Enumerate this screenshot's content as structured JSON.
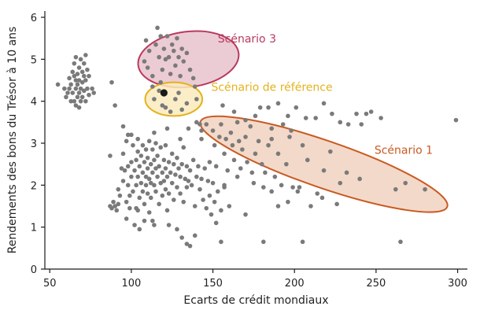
{
  "chart_data": {
    "type": "scatter",
    "title": "",
    "xlabel": "Ecarts de crédit mondiaux",
    "ylabel": "Rendements des bons du Trésor à 10 ans",
    "xlim": [
      47,
      306
    ],
    "ylim": [
      0,
      6.15
    ],
    "xticks": [
      50,
      100,
      150,
      200,
      250,
      300
    ],
    "yticks": [
      0,
      1,
      2,
      3,
      4,
      5,
      6
    ],
    "grid": false,
    "point_color": "#7a7a7a",
    "highlight_point": {
      "x": 120,
      "y": 4.2,
      "color": "#1a1a1a"
    },
    "annotations": [
      {
        "label": "Scénario 3",
        "center": [
          135,
          5.0
        ],
        "rx": 31,
        "ry": 0.66,
        "angle_deg": -7,
        "stroke": "#b83a5e",
        "fill": "#e9c3cd",
        "label_x": 153,
        "label_y": 5.4
      },
      {
        "label": "Scénario de référence",
        "center": [
          126,
          4.05
        ],
        "rx": 17.5,
        "ry": 0.4,
        "angle_deg": 0,
        "stroke": "#e3b21e",
        "fill": "#faebbd",
        "label_x": 149,
        "label_y": 4.25
      },
      {
        "label": "Scénario 1",
        "center": [
          218,
          2.5
        ],
        "rx": 80,
        "ry": 0.56,
        "angle_deg": 19,
        "stroke": "#c85a21",
        "fill": "#f1d2c0",
        "label_x": 249,
        "label_y": 2.75
      }
    ],
    "points": [
      [
        55,
        4.4
      ],
      [
        59,
        4.3
      ],
      [
        60,
        4.1
      ],
      [
        61,
        4.2
      ],
      [
        62,
        4.3
      ],
      [
        62,
        4.55
      ],
      [
        63,
        4.0
      ],
      [
        63,
        4.4
      ],
      [
        64,
        4.2
      ],
      [
        64,
        4.7
      ],
      [
        65,
        4.0
      ],
      [
        65,
        4.6
      ],
      [
        65,
        4.9
      ],
      [
        66,
        3.9
      ],
      [
        66,
        4.3
      ],
      [
        66,
        4.5
      ],
      [
        66,
        5.05
      ],
      [
        67,
        4.1
      ],
      [
        67,
        4.4
      ],
      [
        67,
        4.65
      ],
      [
        68,
        3.85
      ],
      [
        68,
        4.2
      ],
      [
        68,
        4.5
      ],
      [
        68,
        4.8
      ],
      [
        69,
        4.0
      ],
      [
        69,
        4.3
      ],
      [
        69,
        5.0
      ],
      [
        70,
        4.1
      ],
      [
        70,
        4.45
      ],
      [
        70,
        4.7
      ],
      [
        71,
        4.25
      ],
      [
        71,
        4.6
      ],
      [
        71,
        4.9
      ],
      [
        72,
        4.0
      ],
      [
        72,
        4.5
      ],
      [
        72,
        5.1
      ],
      [
        73,
        4.3
      ],
      [
        73,
        4.75
      ],
      [
        74,
        4.15
      ],
      [
        74,
        4.6
      ],
      [
        76,
        4.3
      ],
      [
        77,
        4.2
      ],
      [
        88,
        4.45
      ],
      [
        90,
        3.9
      ],
      [
        95,
        3.4
      ],
      [
        98,
        3.2
      ],
      [
        87,
        2.7
      ],
      [
        87,
        1.5
      ],
      [
        88,
        1.45
      ],
      [
        89,
        1.6
      ],
      [
        90,
        1.5
      ],
      [
        91,
        1.4
      ],
      [
        92,
        1.55
      ],
      [
        93,
        1.75
      ],
      [
        94,
        2.4
      ],
      [
        95,
        2.1
      ],
      [
        96,
        2.35
      ],
      [
        97,
        1.6
      ],
      [
        97,
        1.2
      ],
      [
        98,
        2.0
      ],
      [
        98,
        2.45
      ],
      [
        99,
        1.75
      ],
      [
        99,
        1.45
      ],
      [
        100,
        2.2
      ],
      [
        100,
        2.55
      ],
      [
        101,
        2.95
      ],
      [
        101,
        1.85
      ],
      [
        102,
        2.35
      ],
      [
        102,
        1.05
      ],
      [
        103,
        2.6
      ],
      [
        103,
        2.0
      ],
      [
        104,
        2.2
      ],
      [
        104,
        2.8
      ],
      [
        104,
        1.4
      ],
      [
        105,
        2.45
      ],
      [
        105,
        1.7
      ],
      [
        105,
        0.95
      ],
      [
        106,
        2.7
      ],
      [
        106,
        2.05
      ],
      [
        107,
        2.3
      ],
      [
        107,
        1.85
      ],
      [
        107,
        2.95
      ],
      [
        108,
        2.55
      ],
      [
        108,
        1.55
      ],
      [
        109,
        2.2
      ],
      [
        109,
        2.85
      ],
      [
        109,
        2.0
      ],
      [
        110,
        2.4
      ],
      [
        110,
        1.8
      ],
      [
        110,
        2.65
      ],
      [
        111,
        2.15
      ],
      [
        111,
        3.05
      ],
      [
        111,
        1.35
      ],
      [
        112,
        2.5
      ],
      [
        112,
        2.05
      ],
      [
        112,
        1.7
      ],
      [
        113,
        2.3
      ],
      [
        113,
        2.85
      ],
      [
        113,
        1.15
      ],
      [
        114,
        2.6
      ],
      [
        114,
        2.0
      ],
      [
        115,
        2.4
      ],
      [
        115,
        1.85
      ],
      [
        115,
        3.0
      ],
      [
        116,
        2.2
      ],
      [
        116,
        2.7
      ],
      [
        117,
        2.45
      ],
      [
        117,
        1.55
      ],
      [
        118,
        2.05
      ],
      [
        118,
        2.9
      ],
      [
        119,
        2.3
      ],
      [
        119,
        1.75
      ],
      [
        120,
        2.6
      ],
      [
        120,
        2.1
      ],
      [
        121,
        2.4
      ],
      [
        121,
        1.9
      ],
      [
        121,
        2.95
      ],
      [
        122,
        2.2
      ],
      [
        122,
        1.4
      ],
      [
        123,
        2.55
      ],
      [
        123,
        1.8
      ],
      [
        124,
        2.3
      ],
      [
        125,
        2.05
      ],
      [
        125,
        2.75
      ],
      [
        126,
        2.5
      ],
      [
        126,
        1.65
      ],
      [
        127,
        2.25
      ],
      [
        128,
        1.95
      ],
      [
        128,
        2.65
      ],
      [
        129,
        2.4
      ],
      [
        130,
        1.8
      ],
      [
        130,
        2.2
      ],
      [
        131,
        2.5
      ],
      [
        132,
        1.6
      ],
      [
        132,
        2.9
      ],
      [
        133,
        2.15
      ],
      [
        134,
        1.95
      ],
      [
        134,
        2.45
      ],
      [
        135,
        2.1
      ],
      [
        136,
        2.35
      ],
      [
        137,
        2.0
      ],
      [
        138,
        2.6
      ],
      [
        139,
        1.5
      ],
      [
        140,
        2.2
      ],
      [
        141,
        2.45
      ],
      [
        142,
        1.9
      ],
      [
        143,
        2.15
      ],
      [
        144,
        1.65
      ],
      [
        145,
        2.4
      ],
      [
        146,
        1.45
      ],
      [
        147,
        2.1
      ],
      [
        148,
        1.75
      ],
      [
        149,
        1.3
      ],
      [
        150,
        2.05
      ],
      [
        151,
        1.6
      ],
      [
        152,
        1.1
      ],
      [
        153,
        1.85
      ],
      [
        155,
        1.4
      ],
      [
        157,
        1.95
      ],
      [
        160,
        1.5
      ],
      [
        103,
        1.45
      ],
      [
        108,
        1.15
      ],
      [
        114,
        1.05
      ],
      [
        123,
        1.05
      ],
      [
        128,
        0.95
      ],
      [
        131,
        0.75
      ],
      [
        134,
        0.6
      ],
      [
        136,
        0.55
      ],
      [
        139,
        0.8
      ],
      [
        92,
        1.9
      ],
      [
        95,
        2.75
      ],
      [
        97,
        3.05
      ],
      [
        100,
        3.2
      ],
      [
        104,
        3.1
      ],
      [
        114,
        3.25
      ],
      [
        122,
        3.35
      ],
      [
        130,
        3.1
      ],
      [
        135,
        3.35
      ],
      [
        140,
        3.5
      ],
      [
        143,
        3.3
      ],
      [
        108,
        4.95
      ],
      [
        109,
        5.45
      ],
      [
        110,
        4.8
      ],
      [
        111,
        5.2
      ],
      [
        113,
        4.6
      ],
      [
        115,
        5.35
      ],
      [
        116,
        5.75
      ],
      [
        117,
        5.05
      ],
      [
        118,
        5.55
      ],
      [
        119,
        4.75
      ],
      [
        120,
        5.25
      ],
      [
        121,
        5.0
      ],
      [
        122,
        5.55
      ],
      [
        123,
        5.05
      ],
      [
        124,
        4.65
      ],
      [
        125,
        5.35
      ],
      [
        126,
        5.2
      ],
      [
        127,
        4.85
      ],
      [
        128,
        5.5
      ],
      [
        129,
        5.05
      ],
      [
        130,
        4.6
      ],
      [
        131,
        5.25
      ],
      [
        132,
        4.95
      ],
      [
        134,
        5.15
      ],
      [
        136,
        4.75
      ],
      [
        138,
        4.55
      ],
      [
        113,
        4.35
      ],
      [
        114,
        4.05
      ],
      [
        117,
        4.25
      ],
      [
        118,
        4.45
      ],
      [
        119,
        3.9
      ],
      [
        121,
        3.85
      ],
      [
        124,
        3.75
      ],
      [
        127,
        4.05
      ],
      [
        129,
        4.2
      ],
      [
        131,
        3.8
      ],
      [
        134,
        3.95
      ],
      [
        139,
        4.35
      ],
      [
        140,
        4.05
      ],
      [
        142,
        3.45
      ],
      [
        143,
        3.1
      ],
      [
        146,
        3.45
      ],
      [
        148,
        2.55
      ],
      [
        150,
        3.3
      ],
      [
        151,
        2.95
      ],
      [
        152,
        2.45
      ],
      [
        154,
        3.15
      ],
      [
        155,
        3.45
      ],
      [
        157,
        2.75
      ],
      [
        158,
        3.1
      ],
      [
        159,
        2.35
      ],
      [
        161,
        3.25
      ],
      [
        162,
        2.95
      ],
      [
        163,
        2.6
      ],
      [
        165,
        3.5
      ],
      [
        166,
        3.05
      ],
      [
        167,
        2.4
      ],
      [
        168,
        2.85
      ],
      [
        170,
        3.15
      ],
      [
        171,
        2.55
      ],
      [
        173,
        3.4
      ],
      [
        174,
        2.3
      ],
      [
        176,
        2.75
      ],
      [
        178,
        3.05
      ],
      [
        180,
        2.5
      ],
      [
        182,
        2.3
      ],
      [
        184,
        2.95
      ],
      [
        186,
        3.1
      ],
      [
        188,
        2.2
      ],
      [
        190,
        2.75
      ],
      [
        192,
        2.0
      ],
      [
        195,
        2.5
      ],
      [
        197,
        3.15
      ],
      [
        199,
        1.95
      ],
      [
        202,
        1.85
      ],
      [
        205,
        2.95
      ],
      [
        208,
        2.6
      ],
      [
        214,
        1.8
      ],
      [
        218,
        2.35
      ],
      [
        222,
        2.8
      ],
      [
        226,
        1.55
      ],
      [
        228,
        2.05
      ],
      [
        232,
        2.3
      ],
      [
        240,
        2.15
      ],
      [
        262,
        1.9
      ],
      [
        268,
        2.05
      ],
      [
        280,
        1.9
      ],
      [
        156,
        3.9
      ],
      [
        163,
        3.75
      ],
      [
        170,
        3.55
      ],
      [
        176,
        3.65
      ],
      [
        179,
        3.85
      ],
      [
        184,
        3.85
      ],
      [
        190,
        3.95
      ],
      [
        196,
        3.65
      ],
      [
        201,
        3.85
      ],
      [
        207,
        3.6
      ],
      [
        213,
        3.6
      ],
      [
        218,
        3.95
      ],
      [
        223,
        3.7
      ],
      [
        228,
        3.5
      ],
      [
        233,
        3.45
      ],
      [
        238,
        3.7
      ],
      [
        241,
        3.45
      ],
      [
        244,
        3.7
      ],
      [
        247,
        3.75
      ],
      [
        253,
        3.6
      ],
      [
        299,
        3.55
      ],
      [
        186,
        3.35
      ],
      [
        193,
        3.45
      ],
      [
        198,
        3.3
      ],
      [
        157,
        2.0
      ],
      [
        165,
        2.2
      ],
      [
        175,
        2.05
      ],
      [
        181,
        1.95
      ],
      [
        186,
        1.85
      ],
      [
        196,
        1.6
      ],
      [
        203,
        1.95
      ],
      [
        210,
        1.5
      ],
      [
        217,
        1.7
      ],
      [
        155,
        0.65
      ],
      [
        181,
        0.65
      ],
      [
        205,
        0.65
      ],
      [
        265,
        0.65
      ],
      [
        170,
        1.3
      ],
      [
        190,
        1.5
      ]
    ]
  }
}
